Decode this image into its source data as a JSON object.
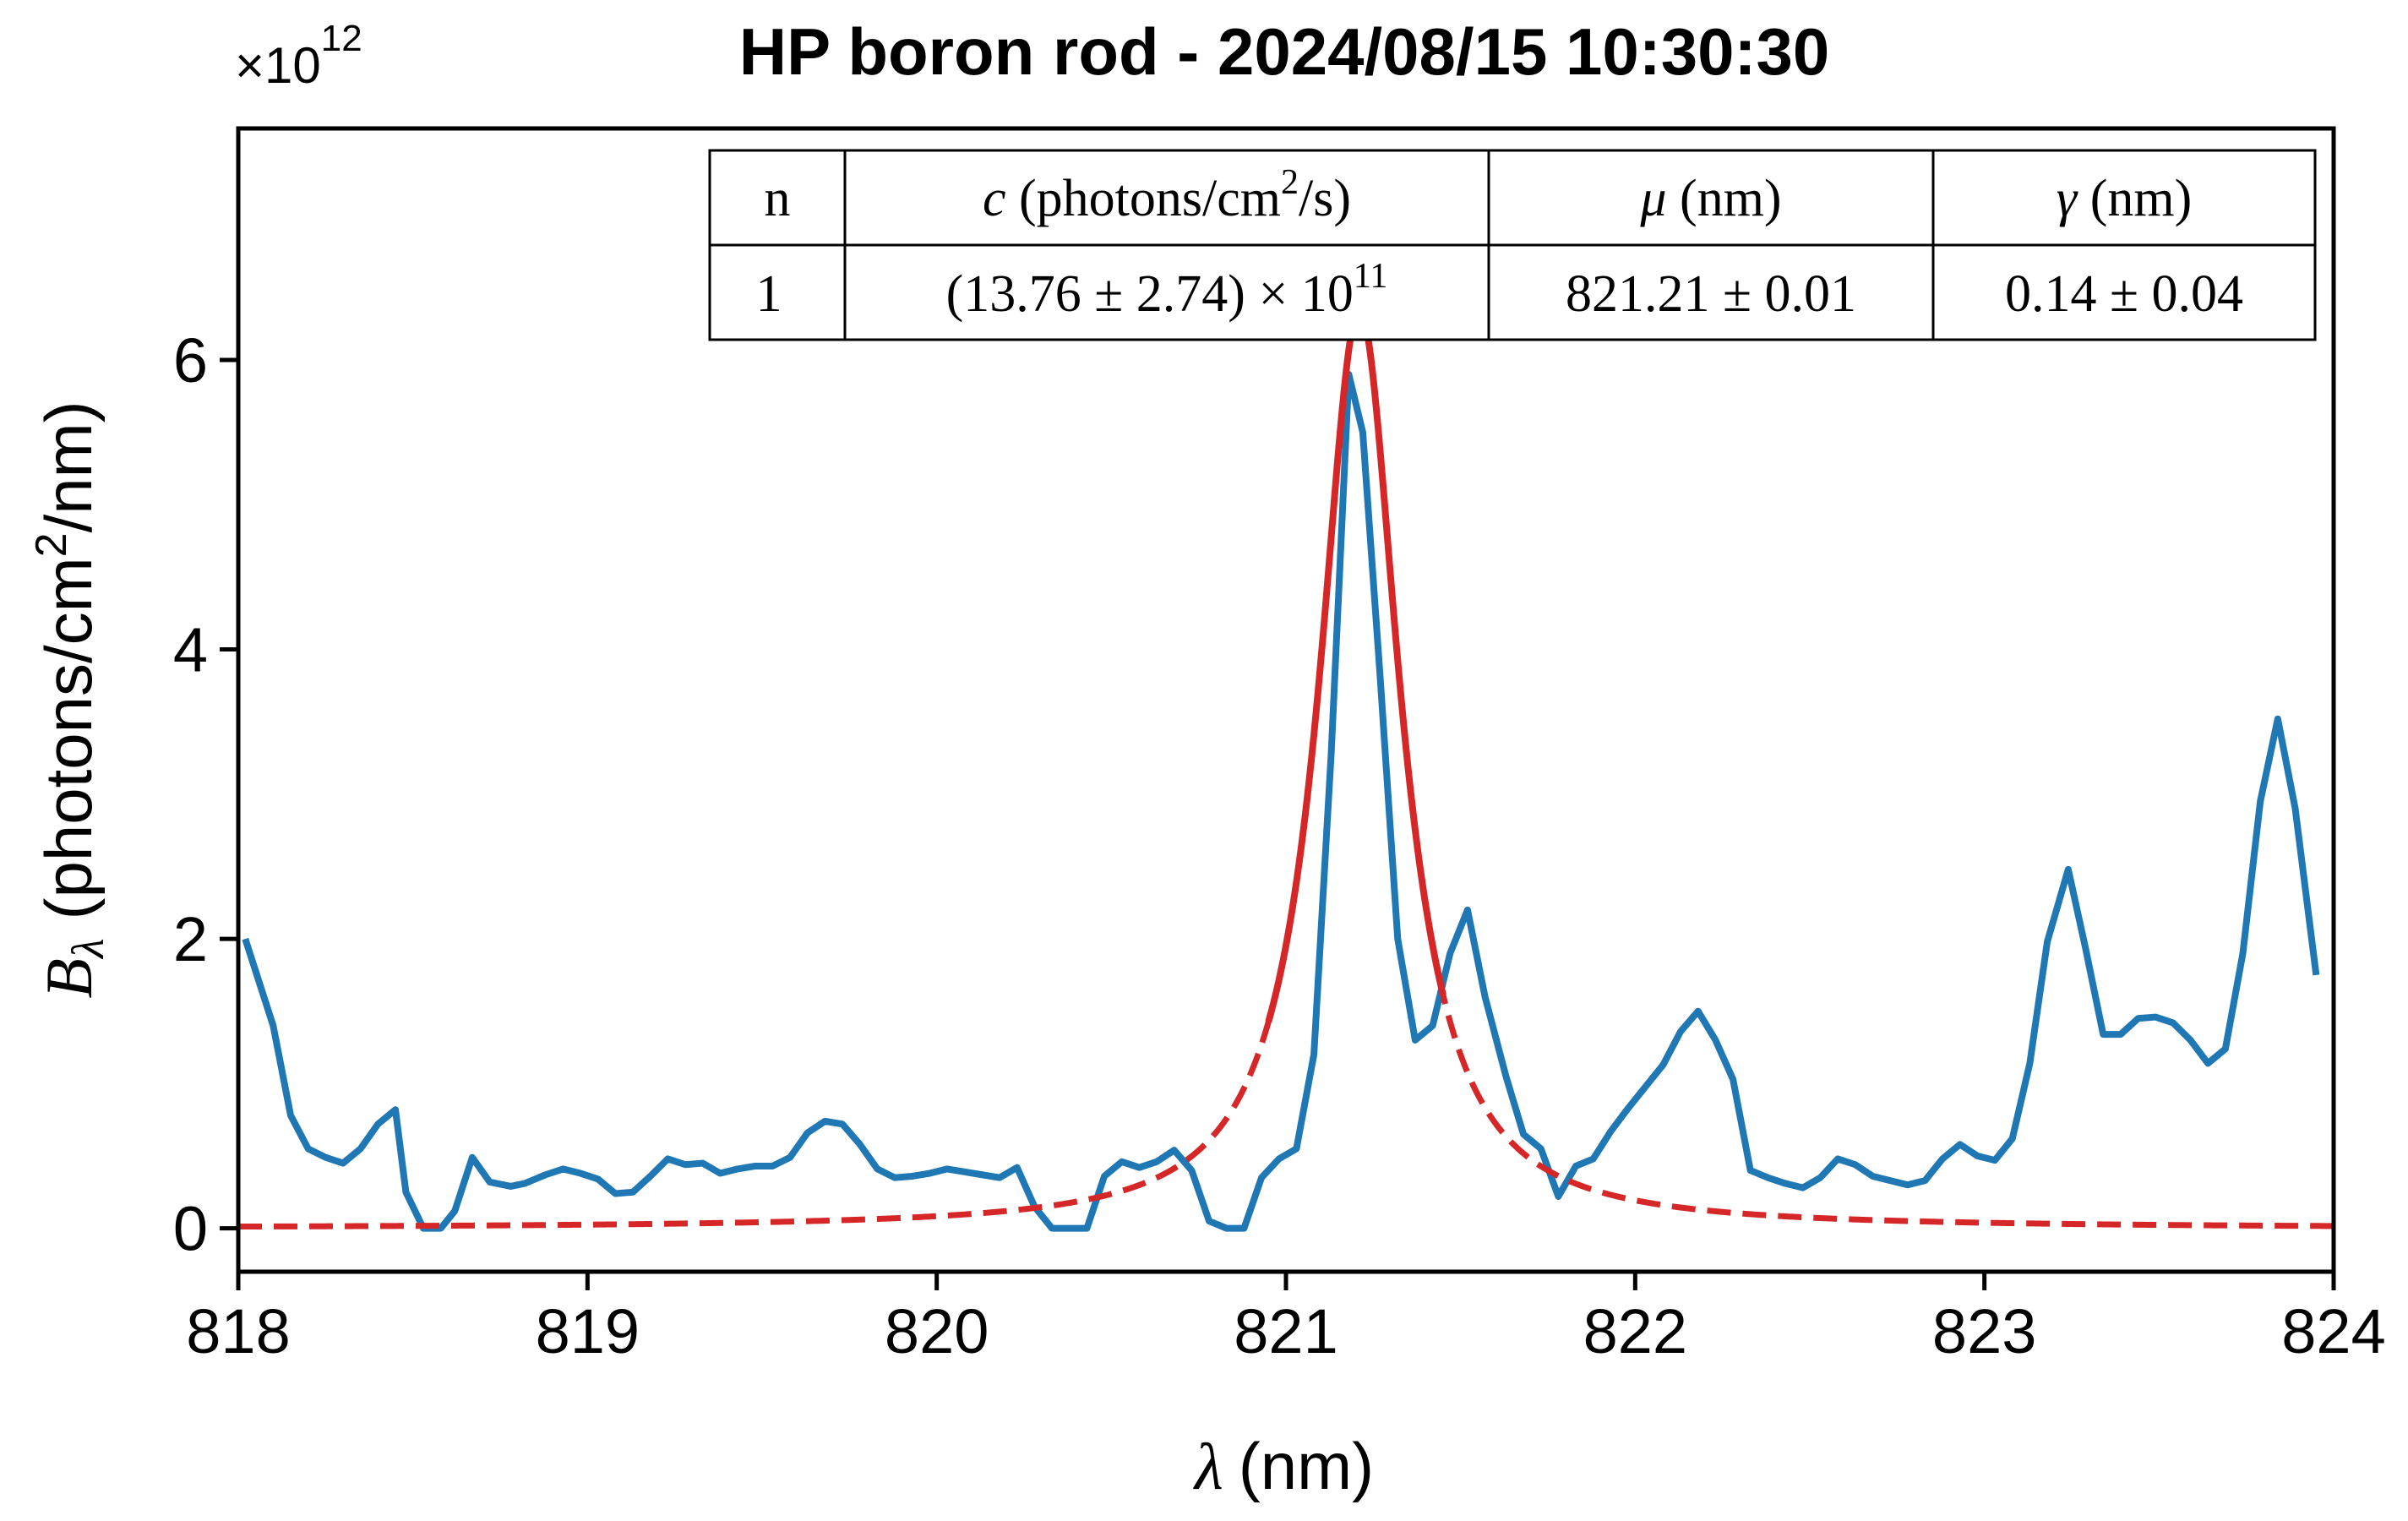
{
  "chart_data": {
    "type": "line",
    "title": "HP boron rod - 2024/08/15 10:30:30",
    "xlabel": {
      "symbol": "λ",
      "unit": "(nm)"
    },
    "ylabel": {
      "symbol": "B",
      "subscript": "λ",
      "unit_prefix": "(photons/cm",
      "unit_sup": "2",
      "unit_suffix": "/nm)"
    },
    "y_multiplier": {
      "base": "×10",
      "exponent": "12"
    },
    "xlim": [
      818,
      824
    ],
    "ylim": [
      -300000000000.0,
      7600000000000.0
    ],
    "xticks": [
      818,
      819,
      820,
      821,
      822,
      823,
      824
    ],
    "xtick_labels": [
      "818",
      "819",
      "820",
      "821",
      "822",
      "823",
      "824"
    ],
    "yticks": [
      0,
      2000000000000.0,
      4000000000000.0,
      6000000000000.0
    ],
    "ytick_labels": [
      "0",
      "2",
      "4",
      "6"
    ],
    "grid": false,
    "colors": {
      "measured": "#1f77b4",
      "fit": "#d62728",
      "axes": "#000000"
    },
    "series": [
      {
        "style": "solid",
        "color": "#1f77b4",
        "points": [
          [
            818.02,
            2000000000000.0
          ],
          [
            818.1,
            1400000000000.0
          ],
          [
            818.15,
            780000000000.0
          ],
          [
            818.2,
            550000000000.0
          ],
          [
            818.25,
            490000000000.0
          ],
          [
            818.3,
            450000000000.0
          ],
          [
            818.35,
            550000000000.0
          ],
          [
            818.4,
            720000000000.0
          ],
          [
            818.45,
            820000000000.0
          ],
          [
            818.48,
            250000000000.0
          ],
          [
            818.53,
            0.0
          ],
          [
            818.58,
            0.0
          ],
          [
            818.62,
            120000000000.0
          ],
          [
            818.67,
            490000000000.0
          ],
          [
            818.72,
            320000000000.0
          ],
          [
            818.78,
            290000000000.0
          ],
          [
            818.82,
            310000000000.0
          ],
          [
            818.88,
            370000000000.0
          ],
          [
            818.93,
            410000000000.0
          ],
          [
            818.98,
            380000000000.0
          ],
          [
            819.03,
            340000000000.0
          ],
          [
            819.08,
            240000000000.0
          ],
          [
            819.13,
            250000000000.0
          ],
          [
            819.18,
            360000000000.0
          ],
          [
            819.23,
            480000000000.0
          ],
          [
            819.28,
            440000000000.0
          ],
          [
            819.33,
            450000000000.0
          ],
          [
            819.38,
            380000000000.0
          ],
          [
            819.43,
            410000000000.0
          ],
          [
            819.48,
            430000000000.0
          ],
          [
            819.53,
            430000000000.0
          ],
          [
            819.58,
            490000000000.0
          ],
          [
            819.63,
            660000000000.0
          ],
          [
            819.68,
            740000000000.0
          ],
          [
            819.73,
            720000000000.0
          ],
          [
            819.78,
            580000000000.0
          ],
          [
            819.83,
            410000000000.0
          ],
          [
            819.88,
            350000000000.0
          ],
          [
            819.93,
            360000000000.0
          ],
          [
            819.98,
            380000000000.0
          ],
          [
            820.03,
            410000000000.0
          ],
          [
            820.08,
            390000000000.0
          ],
          [
            820.13,
            370000000000.0
          ],
          [
            820.18,
            350000000000.0
          ],
          [
            820.23,
            420000000000.0
          ],
          [
            820.28,
            150000000000.0
          ],
          [
            820.33,
            0.0
          ],
          [
            820.38,
            0.0
          ],
          [
            820.43,
            0.0
          ],
          [
            820.48,
            360000000000.0
          ],
          [
            820.53,
            460000000000.0
          ],
          [
            820.58,
            420000000000.0
          ],
          [
            820.63,
            460000000000.0
          ],
          [
            820.68,
            540000000000.0
          ],
          [
            820.73,
            400000000000.0
          ],
          [
            820.78,
            50000000000.0
          ],
          [
            820.83,
            0.0
          ],
          [
            820.88,
            0.0
          ],
          [
            820.93,
            350000000000.0
          ],
          [
            820.98,
            480000000000.0
          ],
          [
            821.03,
            550000000000.0
          ],
          [
            821.08,
            1200000000000.0
          ],
          [
            821.13,
            3300000000000.0
          ],
          [
            821.18,
            5900000000000.0
          ],
          [
            821.22,
            5500000000000.0
          ],
          [
            821.27,
            3800000000000.0
          ],
          [
            821.32,
            2000000000000.0
          ],
          [
            821.37,
            1300000000000.0
          ],
          [
            821.42,
            1400000000000.0
          ],
          [
            821.47,
            1900000000000.0
          ],
          [
            821.52,
            2200000000000.0
          ],
          [
            821.57,
            1600000000000.0
          ],
          [
            821.63,
            1050000000000.0
          ],
          [
            821.68,
            650000000000.0
          ],
          [
            821.73,
            550000000000.0
          ],
          [
            821.78,
            220000000000.0
          ],
          [
            821.83,
            430000000000.0
          ],
          [
            821.88,
            480000000000.0
          ],
          [
            821.93,
            670000000000.0
          ],
          [
            821.98,
            830000000000.0
          ],
          [
            822.03,
            980000000000.0
          ],
          [
            822.08,
            1130000000000.0
          ],
          [
            822.13,
            1360000000000.0
          ],
          [
            822.18,
            1500000000000.0
          ],
          [
            822.23,
            1300000000000.0
          ],
          [
            822.28,
            1030000000000.0
          ],
          [
            822.33,
            400000000000.0
          ],
          [
            822.38,
            350000000000.0
          ],
          [
            822.43,
            310000000000.0
          ],
          [
            822.48,
            280000000000.0
          ],
          [
            822.53,
            350000000000.0
          ],
          [
            822.58,
            480000000000.0
          ],
          [
            822.63,
            440000000000.0
          ],
          [
            822.68,
            360000000000.0
          ],
          [
            822.73,
            330000000000.0
          ],
          [
            822.78,
            300000000000.0
          ],
          [
            822.83,
            330000000000.0
          ],
          [
            822.88,
            480000000000.0
          ],
          [
            822.93,
            580000000000.0
          ],
          [
            822.98,
            500000000000.0
          ],
          [
            823.03,
            470000000000.0
          ],
          [
            823.08,
            620000000000.0
          ],
          [
            823.13,
            1140000000000.0
          ],
          [
            823.18,
            1980000000000.0
          ],
          [
            823.24,
            2480000000000.0
          ],
          [
            823.29,
            1930000000000.0
          ],
          [
            823.34,
            1340000000000.0
          ],
          [
            823.39,
            1340000000000.0
          ],
          [
            823.44,
            1450000000000.0
          ],
          [
            823.49,
            1460000000000.0
          ],
          [
            823.54,
            1420000000000.0
          ],
          [
            823.59,
            1300000000000.0
          ],
          [
            823.64,
            1140000000000.0
          ],
          [
            823.69,
            1240000000000.0
          ],
          [
            823.74,
            1900000000000.0
          ],
          [
            823.79,
            2950000000000.0
          ],
          [
            823.84,
            3520000000000.0
          ],
          [
            823.89,
            2900000000000.0
          ],
          [
            823.95,
            1750000000000.0
          ]
        ]
      },
      {
        "style": "dashed",
        "color": "#d62728",
        "fit": {
          "model": "lorentzian",
          "mu": 821.21,
          "gamma": 0.14,
          "peak": 6350000000000.0,
          "solid_range": [
            820.95,
            821.45
          ]
        }
      }
    ],
    "table": {
      "headers": [
        {
          "sym": "n",
          "unit": ""
        },
        {
          "sym": "c",
          "unit": " (photons/cm",
          "sup": "2",
          "tail": "/s)"
        },
        {
          "sym": "μ",
          "unit": " (nm)"
        },
        {
          "sym": "γ",
          "unit": " (nm)"
        }
      ],
      "row": {
        "n": "1",
        "c_main": "(13.76 ± 2.74) × 10",
        "c_exp": "11",
        "mu": "821.21 ± 0.01",
        "gamma": "0.14 ± 0.04"
      }
    }
  }
}
